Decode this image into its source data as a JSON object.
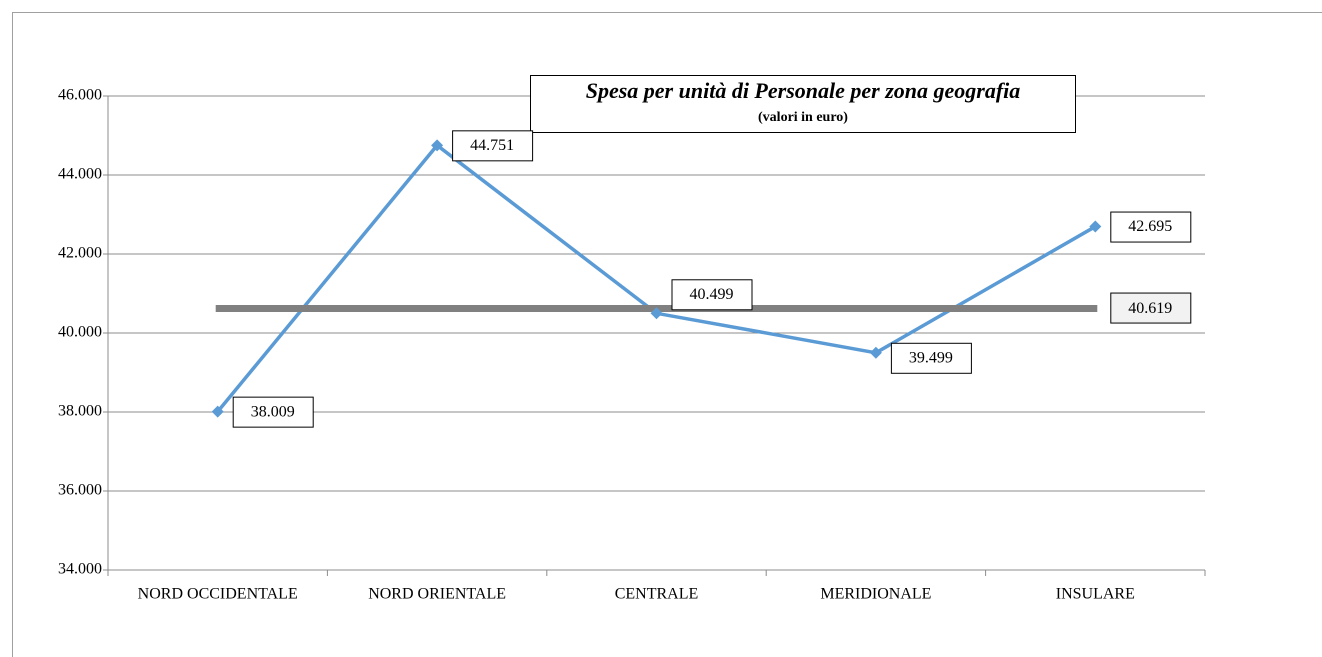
{
  "chart_data": {
    "type": "line",
    "title": "Spesa per unità di Personale per zona geografia",
    "subtitle": "(valori in euro)",
    "categories": [
      "NORD OCCIDENTALE",
      "NORD ORIENTALE",
      "CENTRALE",
      "MERIDIONALE",
      "INSULARE"
    ],
    "series": [
      {
        "color": "#5b9bd5",
        "values": [
          38009,
          44751,
          40499,
          39499,
          42695
        ],
        "value_labels": [
          "38.009",
          "44.751",
          "40.499",
          "39.499",
          "42.695"
        ]
      }
    ],
    "average": {
      "value": 40619,
      "label": "40.619",
      "color": "#808080"
    },
    "ylim": [
      34000,
      46000
    ],
    "yticks": [
      {
        "value": 34000,
        "label": "34.000"
      },
      {
        "value": 36000,
        "label": "36.000"
      },
      {
        "value": 38000,
        "label": "38.000"
      },
      {
        "value": 40000,
        "label": "40.000"
      },
      {
        "value": 42000,
        "label": "42.000"
      },
      {
        "value": 44000,
        "label": "44.000"
      },
      {
        "value": 46000,
        "label": "46.000"
      }
    ],
    "grid": true
  }
}
